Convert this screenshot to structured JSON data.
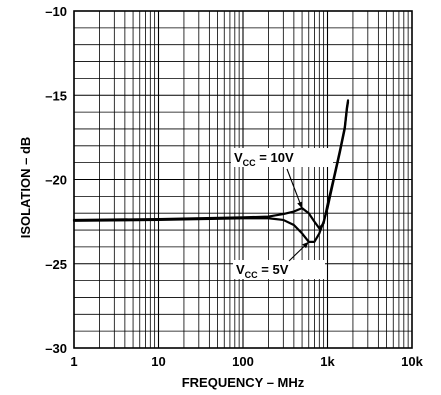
{
  "chart_data": {
    "type": "line",
    "title": "",
    "xlabel": "FREQUENCY – MHz",
    "ylabel": "ISOLATION – dB",
    "x_scale": "log",
    "xlim": [
      1,
      10000
    ],
    "ylim": [
      -30,
      -10
    ],
    "x_ticks": [
      {
        "value": 1,
        "label": "1"
      },
      {
        "value": 10,
        "label": "10"
      },
      {
        "value": 100,
        "label": "100"
      },
      {
        "value": 1000,
        "label": "1k"
      },
      {
        "value": 10000,
        "label": "10k"
      }
    ],
    "y_ticks": [
      {
        "value": -10,
        "label": "–10"
      },
      {
        "value": -15,
        "label": "–15"
      },
      {
        "value": -20,
        "label": "–20"
      },
      {
        "value": -25,
        "label": "–25"
      },
      {
        "value": -30,
        "label": "–30"
      }
    ],
    "grid": true,
    "legend": "none",
    "series": [
      {
        "annotation": {
          "main": "V",
          "sub": "CC",
          "rest": " = 10V"
        },
        "x": [
          1,
          10,
          100,
          200,
          300,
          400,
          500,
          600,
          700,
          800,
          900,
          1000,
          1200,
          1400,
          1600,
          1700,
          1750
        ],
        "y": [
          -22.4,
          -22.35,
          -22.25,
          -22.2,
          -22.05,
          -21.9,
          -21.7,
          -22.0,
          -22.5,
          -22.9,
          -22.6,
          -21.5,
          -19.8,
          -18.3,
          -16.9,
          -15.7,
          -15.3
        ]
      },
      {
        "annotation": {
          "main": "V",
          "sub": "CC",
          "rest": " = 5V"
        },
        "x": [
          1,
          10,
          100,
          200,
          300,
          400,
          500,
          600,
          700,
          800,
          900,
          1000,
          1200,
          1400,
          1600,
          1700,
          1750
        ],
        "y": [
          -22.45,
          -22.4,
          -22.3,
          -22.3,
          -22.4,
          -22.7,
          -23.2,
          -23.7,
          -23.7,
          -23.2,
          -22.5,
          -21.7,
          -19.9,
          -18.4,
          -17.0,
          -15.8,
          -15.4
        ]
      }
    ]
  }
}
